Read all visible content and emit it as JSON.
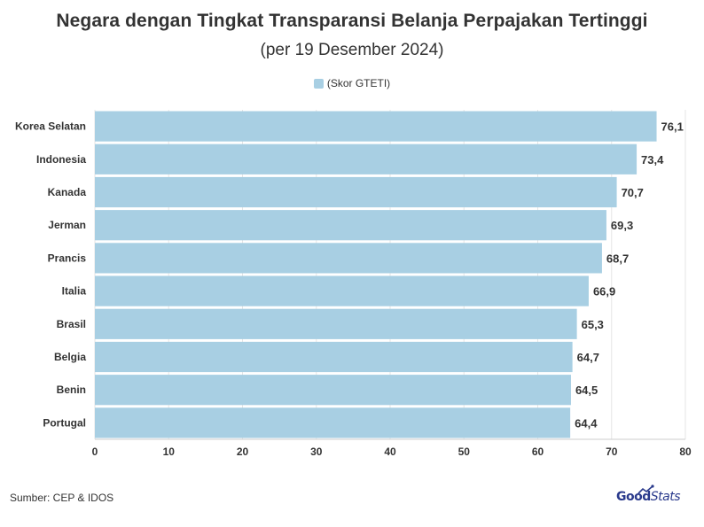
{
  "chart_data": {
    "type": "bar",
    "orientation": "horizontal",
    "title": "Negara dengan Tingkat Transparansi Belanja Perpajakan Tertinggi",
    "subtitle": "(per 19 Desember 2024)",
    "categories": [
      "Korea Selatan",
      "Indonesia",
      "Kanada",
      "Jerman",
      "Prancis",
      "Italia",
      "Brasil",
      "Belgia",
      "Benin",
      "Portugal"
    ],
    "series": [
      {
        "name": "(Skor GTETI)",
        "values": [
          76.1,
          73.4,
          70.7,
          69.3,
          68.7,
          66.9,
          65.3,
          64.7,
          64.5,
          64.4
        ],
        "value_labels": [
          "76,1",
          "73,4",
          "70,7",
          "69,3",
          "68,7",
          "66,9",
          "65,3",
          "64,7",
          "64,5",
          "64,4"
        ]
      }
    ],
    "xlim": [
      0,
      80
    ],
    "xticks": [
      0,
      10,
      20,
      30,
      40,
      50,
      60,
      70,
      80
    ],
    "grid": true,
    "legend_position": "top"
  },
  "colors": {
    "bar": "#a8cfe3",
    "grid": "#e6e6e6",
    "text": "#333333",
    "brand": "#2a3a8c"
  },
  "footer": {
    "source": "Sumber: CEP & IDOS",
    "brand_bold": "Good",
    "brand_light": "Stats"
  }
}
